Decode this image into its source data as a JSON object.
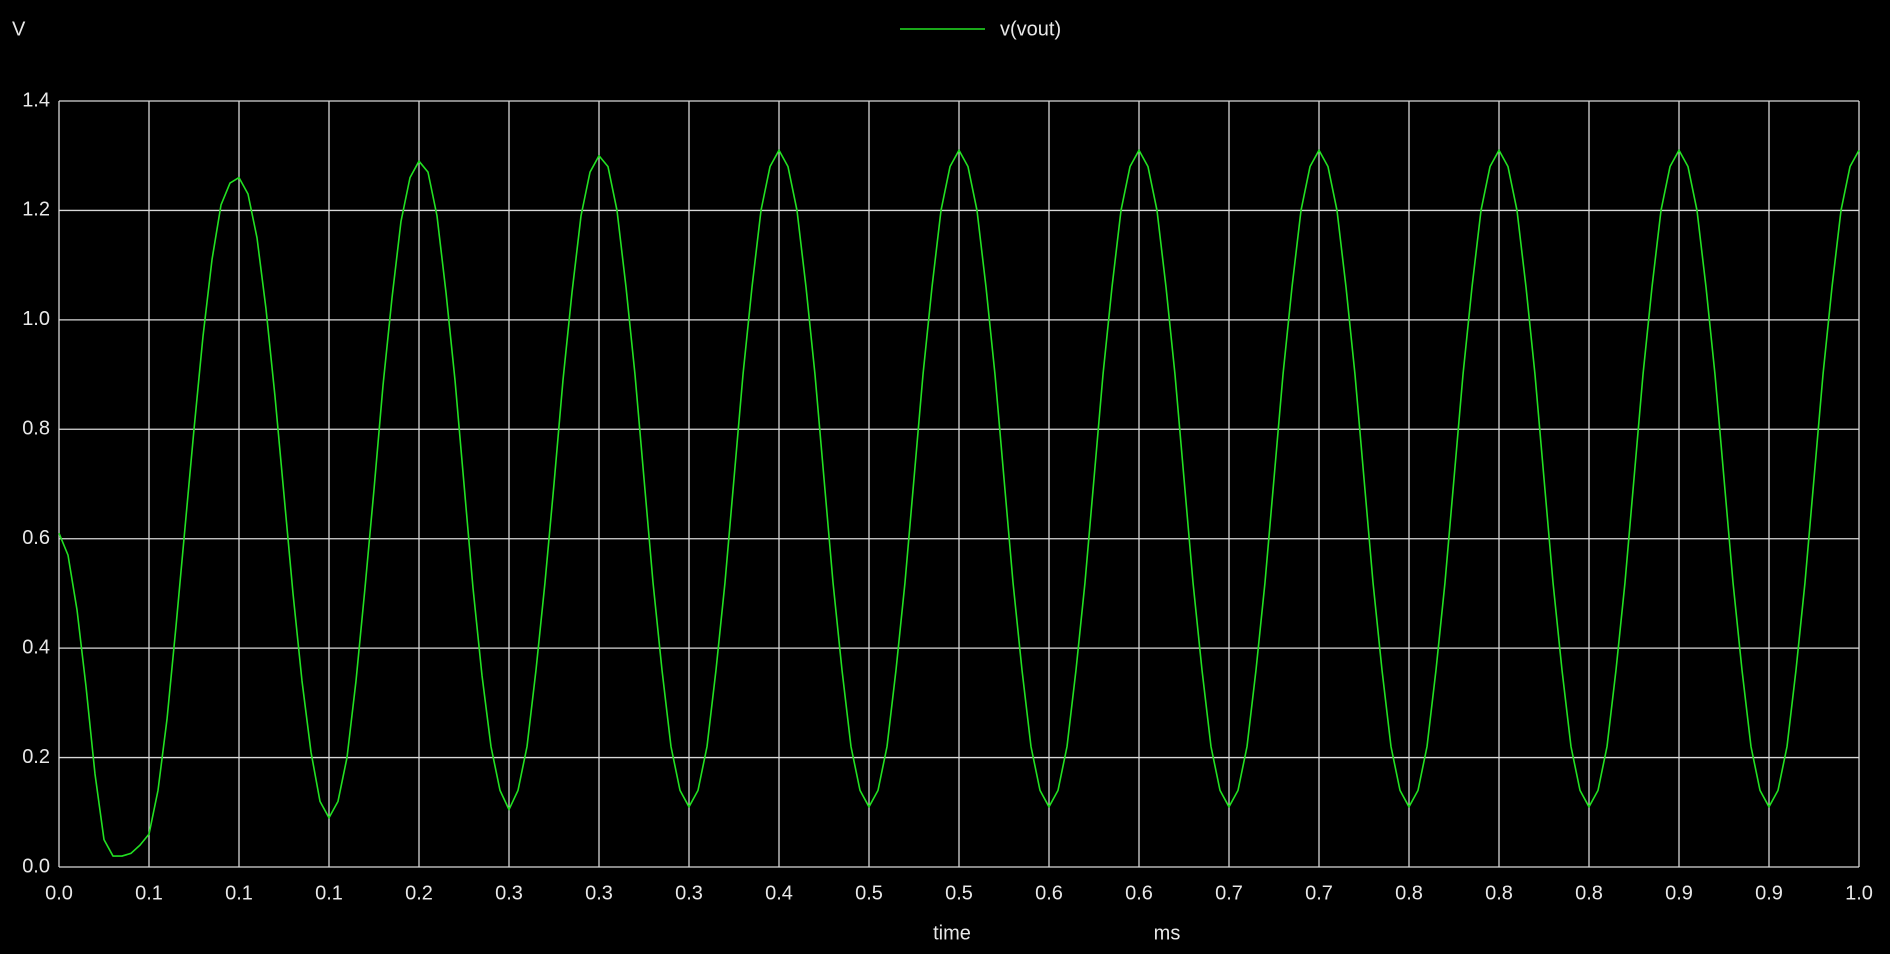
{
  "chart_data": {
    "type": "line",
    "ylabel": "V",
    "xlabel": "time",
    "xunit": "ms",
    "grid": true,
    "legend": "top",
    "xlim": [
      0,
      1
    ],
    "ylim": [
      0,
      1.4
    ],
    "xticks": [
      {
        "value": 0,
        "label": "0.0"
      },
      {
        "value": 0.05,
        "label": "0.1"
      },
      0.1,
      {
        "value": 0.15,
        "label": "0.1"
      },
      0.2,
      {
        "value": 0.25,
        "label": "0.3"
      },
      0.3,
      {
        "value": 0.35,
        "label": "0.3"
      },
      0.4,
      {
        "value": 0.45,
        "label": "0.5"
      },
      0.5,
      {
        "value": 0.55,
        "label": "0.6"
      },
      0.6,
      {
        "value": 0.65,
        "label": "0.7"
      },
      0.7,
      {
        "value": 0.75,
        "label": "0.8"
      },
      0.8,
      {
        "value": 0.85,
        "label": "0.8"
      },
      0.9,
      {
        "value": 0.95,
        "label": "0.9"
      },
      {
        "value": 1,
        "label": "1.0"
      }
    ],
    "yticks": [
      {
        "value": 0,
        "label": "0.0"
      },
      0.2,
      0.4,
      0.6,
      0.8,
      {
        "value": 1,
        "label": "1.0"
      },
      1.2,
      1.4
    ],
    "x": [
      0,
      0.005,
      0.01,
      0.015,
      0.02,
      0.025,
      0.03,
      0.035,
      0.04,
      0.045,
      0.05,
      0.055,
      0.06,
      0.065,
      0.07,
      0.075,
      0.08,
      0.085,
      0.09,
      0.095,
      0.1,
      0.105,
      0.11,
      0.115,
      0.12,
      0.125,
      0.13,
      0.135,
      0.14,
      0.145,
      0.15,
      0.155,
      0.16,
      0.165,
      0.17,
      0.175,
      0.18,
      0.185,
      0.19,
      0.195,
      0.2,
      0.205,
      0.21,
      0.215,
      0.22,
      0.225,
      0.23,
      0.235,
      0.24,
      0.245,
      0.25,
      0.255,
      0.26,
      0.265,
      0.27,
      0.275,
      0.28,
      0.285,
      0.29,
      0.295,
      0.3,
      0.305,
      0.31,
      0.315,
      0.32,
      0.325,
      0.33,
      0.335,
      0.34,
      0.345,
      0.35,
      0.355,
      0.36,
      0.365,
      0.37,
      0.375,
      0.38,
      0.385,
      0.39,
      0.395,
      0.4,
      0.405,
      0.41,
      0.415,
      0.42,
      0.425,
      0.43,
      0.435,
      0.44,
      0.445,
      0.45,
      0.455,
      0.46,
      0.465,
      0.47,
      0.475,
      0.48,
      0.485,
      0.49,
      0.495,
      0.5,
      0.505,
      0.51,
      0.515,
      0.52,
      0.525,
      0.53,
      0.535,
      0.54,
      0.545,
      0.55,
      0.555,
      0.56,
      0.565,
      0.57,
      0.575,
      0.58,
      0.585,
      0.59,
      0.595,
      0.6,
      0.605,
      0.61,
      0.615,
      0.62,
      0.625,
      0.63,
      0.635,
      0.64,
      0.645,
      0.65,
      0.655,
      0.66,
      0.665,
      0.67,
      0.675,
      0.68,
      0.685,
      0.69,
      0.695,
      0.7,
      0.705,
      0.71,
      0.715,
      0.72,
      0.725,
      0.73,
      0.735,
      0.74,
      0.745,
      0.75,
      0.755,
      0.76,
      0.765,
      0.77,
      0.775,
      0.78,
      0.785,
      0.79,
      0.795,
      0.8,
      0.805,
      0.81,
      0.815,
      0.82,
      0.825,
      0.83,
      0.835,
      0.84,
      0.845,
      0.85,
      0.855,
      0.86,
      0.865,
      0.87,
      0.875,
      0.88,
      0.885,
      0.89,
      0.895,
      0.9,
      0.905,
      0.91,
      0.915,
      0.92,
      0.925,
      0.93,
      0.935,
      0.94,
      0.945,
      0.95,
      0.955,
      0.96,
      0.965,
      0.97,
      0.975,
      0.98,
      0.985,
      0.99,
      0.995,
      1
    ],
    "series": [
      {
        "name": "v(vout)",
        "color": "#22e022",
        "values": [
          0.61,
          0.57,
          0.47,
          0.33,
          0.17,
          0.05,
          0.02,
          0.02,
          0.025,
          0.04,
          0.06,
          0.14,
          0.27,
          0.44,
          0.62,
          0.8,
          0.97,
          1.11,
          1.21,
          1.25,
          1.26,
          1.23,
          1.15,
          1.02,
          0.86,
          0.68,
          0.5,
          0.34,
          0.21,
          0.12,
          0.09,
          0.12,
          0.2,
          0.34,
          0.51,
          0.69,
          0.88,
          1.04,
          1.18,
          1.26,
          1.29,
          1.27,
          1.19,
          1.05,
          0.89,
          0.7,
          0.51,
          0.35,
          0.22,
          0.14,
          0.105,
          0.14,
          0.22,
          0.36,
          0.52,
          0.7,
          0.89,
          1.05,
          1.19,
          1.27,
          1.3,
          1.28,
          1.2,
          1.06,
          0.9,
          0.71,
          0.52,
          0.36,
          0.22,
          0.14,
          0.11,
          0.14,
          0.22,
          0.36,
          0.52,
          0.71,
          0.9,
          1.06,
          1.2,
          1.28,
          1.31,
          1.28,
          1.2,
          1.06,
          0.9,
          0.71,
          0.52,
          0.36,
          0.22,
          0.14,
          0.11,
          0.14,
          0.22,
          0.36,
          0.52,
          0.71,
          0.9,
          1.06,
          1.2,
          1.28,
          1.31,
          1.28,
          1.2,
          1.06,
          0.9,
          0.71,
          0.52,
          0.36,
          0.22,
          0.14,
          0.11,
          0.14,
          0.22,
          0.36,
          0.52,
          0.71,
          0.9,
          1.06,
          1.2,
          1.28,
          1.31,
          1.28,
          1.2,
          1.06,
          0.9,
          0.71,
          0.52,
          0.36,
          0.22,
          0.14,
          0.11,
          0.14,
          0.22,
          0.36,
          0.52,
          0.71,
          0.9,
          1.06,
          1.2,
          1.28,
          1.31,
          1.28,
          1.2,
          1.06,
          0.9,
          0.71,
          0.52,
          0.36,
          0.22,
          0.14,
          0.11,
          0.14,
          0.22,
          0.36,
          0.52,
          0.71,
          0.9,
          1.06,
          1.2,
          1.28,
          1.31,
          1.28,
          1.2,
          1.06,
          0.9,
          0.71,
          0.52,
          0.36,
          0.22,
          0.14,
          0.11,
          0.14,
          0.22,
          0.36,
          0.52,
          0.71,
          0.9,
          1.06,
          1.2,
          1.28,
          1.31,
          1.28,
          1.2,
          1.06,
          0.9,
          0.71,
          0.52,
          0.36,
          0.22,
          0.14,
          0.11,
          0.14,
          0.22,
          0.36,
          0.52,
          0.71,
          0.9,
          1.06,
          1.2,
          1.28,
          1.31
        ]
      }
    ]
  }
}
